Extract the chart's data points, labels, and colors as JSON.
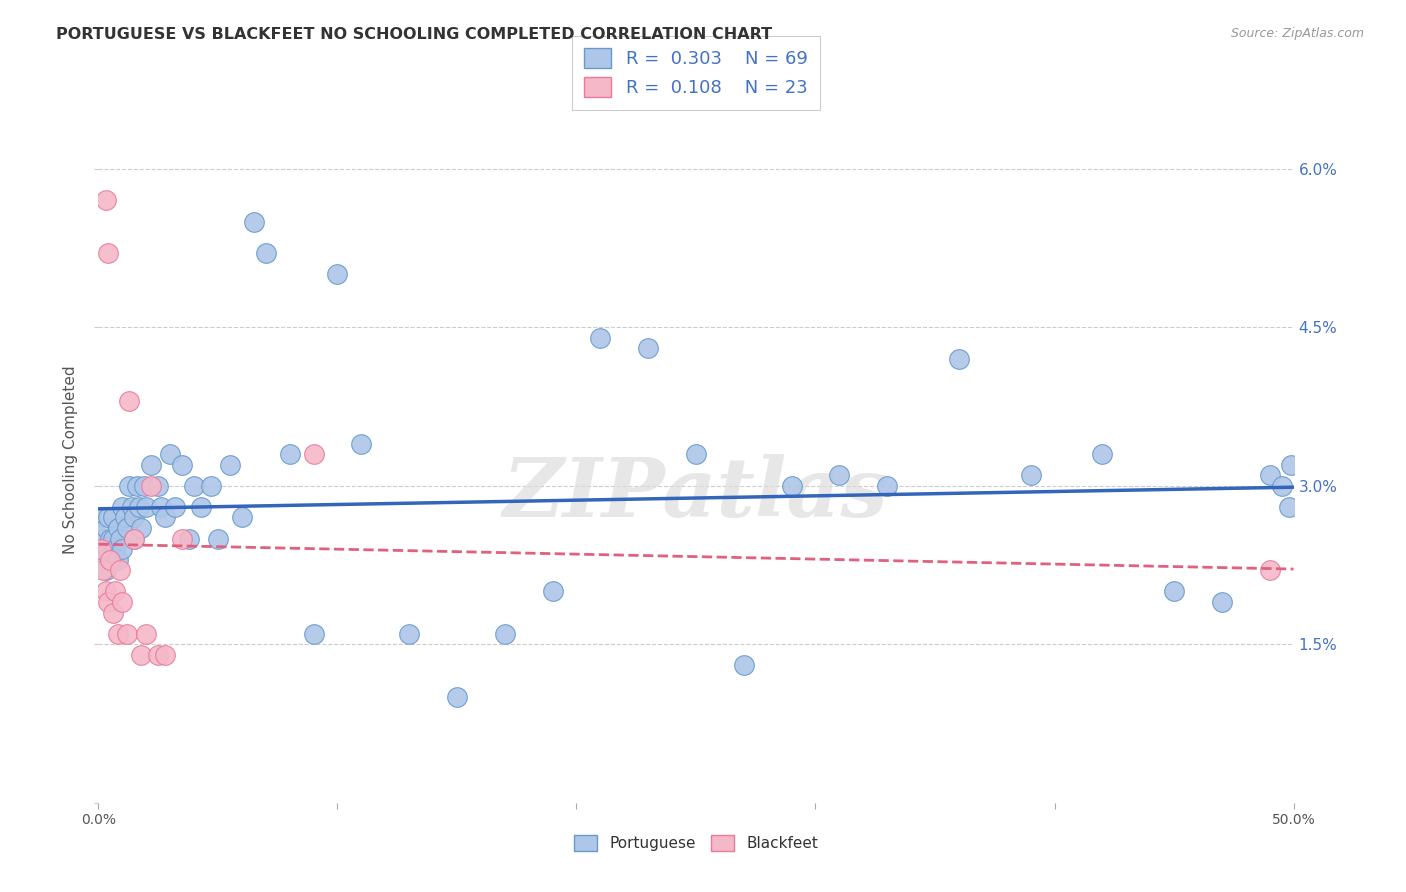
{
  "title": "PORTUGUESE VS BLACKFEET NO SCHOOLING COMPLETED CORRELATION CHART",
  "source": "Source: ZipAtlas.com",
  "ylabel": "No Schooling Completed",
  "xlim": [
    0,
    0.5
  ],
  "ylim": [
    0,
    0.065
  ],
  "portuguese_color": "#aec6e8",
  "blackfeet_color": "#f5b8c8",
  "portuguese_edge_color": "#6699cc",
  "blackfeet_edge_color": "#e87a9a",
  "portuguese_line_color": "#3366bb",
  "blackfeet_line_color": "#e06080",
  "grid_color": "#cccccc",
  "background_color": "#ffffff",
  "right_tick_color": "#4472C4",
  "legend_color": "#4472C4",
  "watermark": "ZIPatlas",
  "portuguese_x": [
    0.001,
    0.001,
    0.002,
    0.002,
    0.003,
    0.003,
    0.004,
    0.004,
    0.005,
    0.005,
    0.006,
    0.006,
    0.007,
    0.008,
    0.008,
    0.009,
    0.01,
    0.01,
    0.011,
    0.012,
    0.013,
    0.014,
    0.015,
    0.015,
    0.016,
    0.017,
    0.018,
    0.019,
    0.02,
    0.022,
    0.025,
    0.026,
    0.028,
    0.03,
    0.032,
    0.035,
    0.038,
    0.04,
    0.043,
    0.047,
    0.05,
    0.055,
    0.06,
    0.065,
    0.07,
    0.08,
    0.09,
    0.1,
    0.11,
    0.13,
    0.15,
    0.17,
    0.19,
    0.21,
    0.23,
    0.25,
    0.27,
    0.29,
    0.31,
    0.33,
    0.36,
    0.39,
    0.42,
    0.45,
    0.47,
    0.49,
    0.495,
    0.498,
    0.499
  ],
  "portuguese_y": [
    0.024,
    0.027,
    0.025,
    0.023,
    0.026,
    0.022,
    0.027,
    0.024,
    0.025,
    0.023,
    0.027,
    0.025,
    0.024,
    0.026,
    0.023,
    0.025,
    0.028,
    0.024,
    0.027,
    0.026,
    0.03,
    0.028,
    0.027,
    0.025,
    0.03,
    0.028,
    0.026,
    0.03,
    0.028,
    0.032,
    0.03,
    0.028,
    0.027,
    0.033,
    0.028,
    0.032,
    0.025,
    0.03,
    0.028,
    0.03,
    0.025,
    0.032,
    0.027,
    0.055,
    0.052,
    0.033,
    0.016,
    0.05,
    0.034,
    0.016,
    0.01,
    0.016,
    0.02,
    0.044,
    0.043,
    0.033,
    0.013,
    0.03,
    0.031,
    0.03,
    0.042,
    0.031,
    0.033,
    0.02,
    0.019,
    0.031,
    0.03,
    0.028,
    0.032
  ],
  "blackfeet_x": [
    0.001,
    0.002,
    0.003,
    0.003,
    0.004,
    0.004,
    0.005,
    0.006,
    0.007,
    0.008,
    0.009,
    0.01,
    0.012,
    0.013,
    0.015,
    0.018,
    0.02,
    0.022,
    0.025,
    0.028,
    0.035,
    0.09,
    0.49
  ],
  "blackfeet_y": [
    0.024,
    0.022,
    0.057,
    0.02,
    0.019,
    0.052,
    0.023,
    0.018,
    0.02,
    0.016,
    0.022,
    0.019,
    0.016,
    0.038,
    0.025,
    0.014,
    0.016,
    0.03,
    0.014,
    0.014,
    0.025,
    0.033,
    0.022
  ]
}
